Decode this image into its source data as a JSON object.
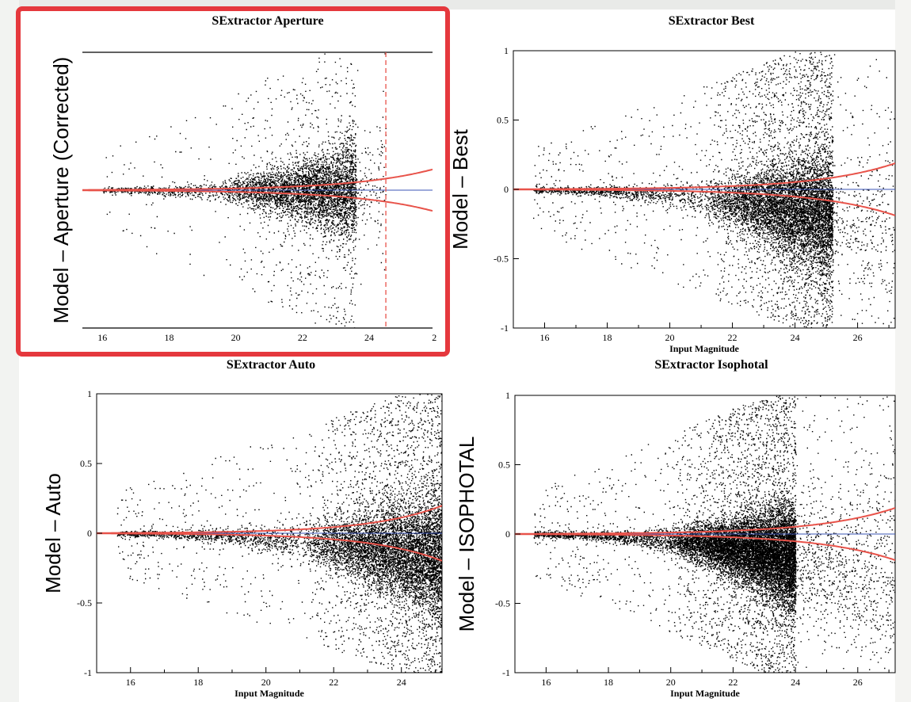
{
  "accent_colors": {
    "highlight": "#e5383d",
    "curve": "#e8534a",
    "zero_line": "#3b55b5",
    "points": "#000000"
  },
  "chart_data": [
    {
      "type": "scatter",
      "title": "SExtractor Aperture",
      "xlabel": "",
      "ylabel": "Model – Aperture  (Corrected)",
      "xlim": [
        15.4,
        25.9
      ],
      "ylim": [
        -1,
        1
      ],
      "xticks": [
        "16",
        "18",
        "20",
        "22",
        "24",
        "2"
      ],
      "yticks": [],
      "vertical_cut": 24.5,
      "envelope": {
        "coef": 0.0055,
        "scale": 1.52,
        "ref": 18
      },
      "scatter": {
        "n": 5200,
        "bias": 0.0,
        "spread": 0.22,
        "peak": 23.6,
        "faint_limit": 24.5,
        "uniform_frac": 0.14
      },
      "highlighted": true
    },
    {
      "type": "scatter",
      "title": "SExtractor Best",
      "xlabel": "Input Magnitude",
      "ylabel": "Model – Best",
      "xlim": [
        15,
        27.2
      ],
      "ylim": [
        -1,
        1
      ],
      "xticks": [
        "16",
        "18",
        "20",
        "22",
        "24",
        "26"
      ],
      "yticks": [
        "1",
        "0.5",
        "0",
        "-0.5",
        "-1"
      ],
      "envelope": {
        "coef": 0.0048,
        "scale": 1.49,
        "ref": 18
      },
      "scatter": {
        "n": 9500,
        "bias": -0.22,
        "spread": 0.26,
        "peak": 25.2,
        "faint_limit": 27.2,
        "uniform_frac": 0.26
      },
      "highlighted": false
    },
    {
      "type": "scatter",
      "title": "SExtractor Auto",
      "xlabel": "Input Magnitude",
      "ylabel": "Model – Auto",
      "xlim": [
        15,
        25.2
      ],
      "ylim": [
        -1,
        1
      ],
      "xticks": [
        "16",
        "18",
        "20",
        "22",
        "24"
      ],
      "yticks": [
        "1",
        "0.5",
        "0",
        "-0.5",
        "-1"
      ],
      "envelope": {
        "coef": 0.0067,
        "scale": 1.6,
        "ref": 18
      },
      "scatter": {
        "n": 9000,
        "bias": -0.2,
        "spread": 0.26,
        "peak": 25.2,
        "faint_limit": 25.2,
        "uniform_frac": 0.25
      },
      "highlighted": false
    },
    {
      "type": "scatter",
      "title": "SExtractor Isophotal",
      "xlabel": "Input Magnitude",
      "ylabel": "Model – ISOPHOTAL",
      "xlim": [
        15,
        27.2
      ],
      "ylim": [
        -1,
        1
      ],
      "xticks": [
        "16",
        "18",
        "20",
        "22",
        "24",
        "26"
      ],
      "yticks": [
        "1",
        "0.5",
        "0",
        "-0.5",
        "-1"
      ],
      "envelope": {
        "coef": 0.0048,
        "scale": 1.49,
        "ref": 18
      },
      "scatter": {
        "n": 14000,
        "bias": -0.2,
        "spread": 0.22,
        "peak": 24.0,
        "faint_limit": 27.2,
        "uniform_frac": 0.2
      },
      "highlighted": false
    }
  ]
}
